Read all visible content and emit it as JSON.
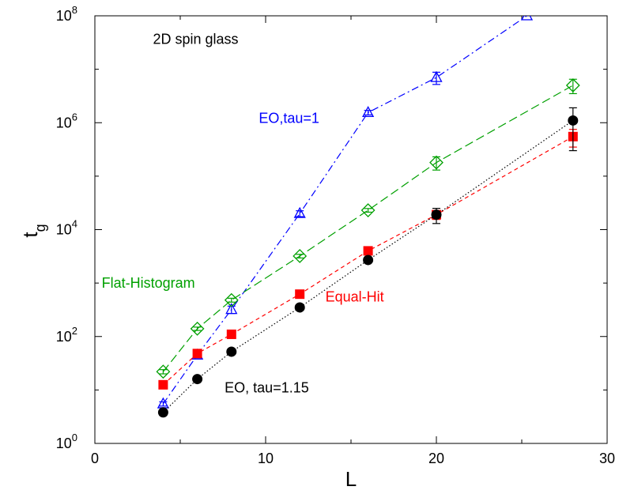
{
  "chart_data": {
    "type": "scatter",
    "xlabel": "L",
    "ylabel": "t",
    "ylabel_sub": "g",
    "xlim": [
      0,
      30
    ],
    "ylim": [
      1,
      100000000
    ],
    "yscale": "log",
    "xticks": [
      0,
      10,
      20,
      30
    ],
    "xtick_labels": [
      "0",
      "10",
      "20",
      "30"
    ],
    "yticks": [
      1,
      100,
      10000,
      1000000,
      100000000
    ],
    "ytick_labels": [
      {
        "base": "10",
        "exp": "0"
      },
      {
        "base": "10",
        "exp": "2"
      },
      {
        "base": "10",
        "exp": "4"
      },
      {
        "base": "10",
        "exp": "6"
      },
      {
        "base": "10",
        "exp": "8"
      }
    ],
    "grid": false,
    "series": [
      {
        "name": "EO,tau=1",
        "color": "#0000ff",
        "marker": "triangle-open",
        "line": "dash-dot",
        "x": [
          4,
          6,
          8,
          12,
          16,
          20,
          25.3
        ],
        "y": [
          5.5,
          45,
          320,
          20000,
          1550000,
          7000000,
          100000000
        ],
        "err": [
          0.5,
          5,
          50,
          2500,
          150000,
          1800000,
          0
        ]
      },
      {
        "name": "Flat-Histogram",
        "color": "#00a000",
        "marker": "diamond-open",
        "line": "long-dash",
        "x": [
          4,
          6,
          8,
          12,
          16,
          20,
          28
        ],
        "y": [
          22,
          140,
          480,
          3200,
          23000,
          180000,
          5000000
        ],
        "err": [
          2,
          10,
          40,
          250,
          1800,
          50000,
          1500000
        ]
      },
      {
        "name": "Equal-Hit",
        "color": "#ff0000",
        "marker": "square-filled",
        "line": "dash",
        "x": [
          4,
          6,
          8,
          12,
          16,
          20,
          28
        ],
        "y": [
          12.5,
          48,
          110,
          620,
          4000,
          19000,
          550000
        ],
        "err": [
          0.8,
          4,
          8,
          40,
          300,
          3500,
          200000
        ]
      },
      {
        "name": "EO, tau=1.15",
        "color": "#000000",
        "marker": "circle-filled",
        "line": "dotted",
        "x": [
          4,
          6,
          8,
          12,
          16,
          20,
          28
        ],
        "y": [
          3.8,
          16,
          52,
          350,
          2700,
          19000,
          1100000
        ],
        "err": [
          0.3,
          1.5,
          4,
          30,
          250,
          6000,
          800000
        ]
      }
    ],
    "annotations": [
      {
        "text": "2D spin glass",
        "color": "#000000",
        "at": [
          3.4,
          30000000
        ]
      },
      {
        "text": "EO,tau=1",
        "color": "#0000ff",
        "at": [
          9.6,
          1000000
        ]
      },
      {
        "text": "Flat-Histogram",
        "color": "#00a000",
        "at": [
          0.4,
          820
        ]
      },
      {
        "text": "Equal-Hit",
        "color": "#ff0000",
        "at": [
          13.5,
          450
        ]
      },
      {
        "text": "EO, tau=1.15",
        "color": "#000000",
        "at": [
          7.6,
          9
        ]
      }
    ]
  }
}
